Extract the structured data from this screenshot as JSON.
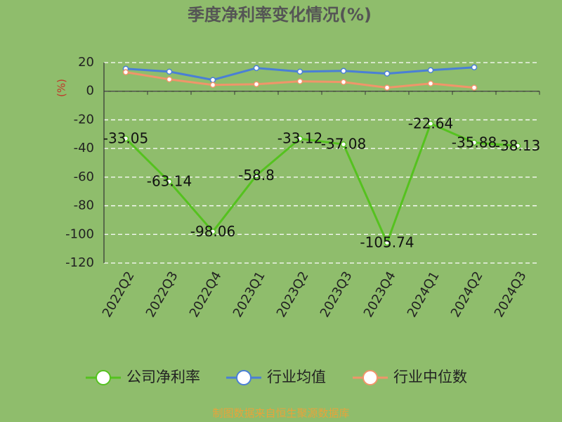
{
  "chart_data": {
    "type": "line",
    "title": "季度净利率变化情况(%)",
    "ylabel": "(%)",
    "source": "制图数据来自恒生聚源数据库",
    "categories": [
      "2022Q2",
      "2022Q3",
      "2022Q4",
      "2023Q1",
      "2023Q2",
      "2023Q3",
      "2023Q4",
      "2024Q1",
      "2024Q2",
      "2024Q3"
    ],
    "series": [
      {
        "name": "公司净利率",
        "color": "#55c21f",
        "values": [
          -33.05,
          -63.14,
          -98.06,
          -58.8,
          -33.12,
          -37.08,
          -105.74,
          -22.64,
          -35.88,
          -38.13
        ],
        "labels": true
      },
      {
        "name": "行业均值",
        "color": "#4a7fd6",
        "values": [
          15.7,
          13.7,
          7.9,
          16.2,
          13.7,
          14.2,
          12.3,
          14.7,
          16.7,
          null
        ]
      },
      {
        "name": "行业中位数",
        "color": "#f0956a",
        "values": [
          13.3,
          8.3,
          4.4,
          4.9,
          6.9,
          6.4,
          2.5,
          5.4,
          2.5,
          null
        ]
      }
    ],
    "ylim": [
      -120,
      20
    ],
    "yticks": [
      20,
      0,
      -20,
      -40,
      -60,
      -80,
      -100,
      -120
    ],
    "grid": true
  }
}
